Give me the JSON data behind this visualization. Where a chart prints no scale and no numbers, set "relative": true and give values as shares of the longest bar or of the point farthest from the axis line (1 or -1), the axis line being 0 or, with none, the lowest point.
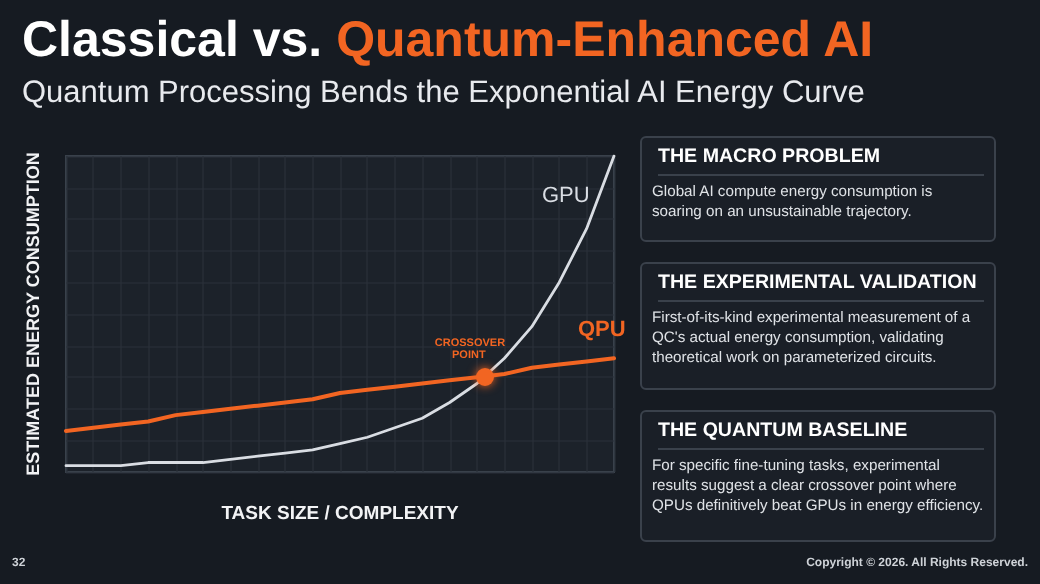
{
  "chart_data": [
    {
      "type": "line",
      "title": "Classical vs. Quantum-Enhanced AI",
      "subtitle": "Quantum Processing Bends the Exponential AI Energy Curve",
      "xlabel": "TASK SIZE / COMPLEXITY",
      "ylabel": "ESTIMATED ENERGY CONSUMPTION",
      "relative": true,
      "grid": true,
      "legend": false,
      "categories": [
        null,
        null,
        null,
        null,
        null,
        null,
        null,
        null,
        null,
        null,
        null,
        null,
        null,
        null,
        null,
        null,
        null,
        null,
        null,
        null,
        null
      ],
      "series": [
        {
          "name": "GPU",
          "color": "#d9dde3",
          "values": [
            0.02,
            0.02,
            0.02,
            0.03,
            0.03,
            0.03,
            0.04,
            0.05,
            0.06,
            0.07,
            0.09,
            0.11,
            0.14,
            0.17,
            0.22,
            0.28,
            0.36,
            0.46,
            0.6,
            0.77,
            1.0
          ]
        },
        {
          "name": "QPU",
          "color": "#f26522",
          "values": [
            0.13,
            0.14,
            0.15,
            0.16,
            0.18,
            0.19,
            0.2,
            0.21,
            0.22,
            0.23,
            0.25,
            0.26,
            0.27,
            0.28,
            0.29,
            0.3,
            0.31,
            0.33,
            0.34,
            0.35,
            0.36
          ]
        }
      ],
      "annotations": [
        "CROSSOVER POINT",
        "32",
        "Copyright © 2026. All Rights Reserved."
      ]
    },
    {
      "type": "other",
      "title": "THE MACRO PROBLEM",
      "annotations": [
        "Global AI compute energy consumption is soaring on an unsustainable trajectory."
      ]
    },
    {
      "type": "other",
      "title": "THE EXPERIMENTAL VALIDATION",
      "annotations": [
        "First-of-its-kind experimental measurement of a QC's actual energy consumption, validating theoretical work on parameterized circuits."
      ]
    },
    {
      "type": "other",
      "title": "THE QUANTUM BASELINE",
      "annotations": [
        "For specific fine-tuning tasks, experimental results suggest a clear crossover point where QPUs definitively beat GPUs in energy efficiency."
      ]
    }
  ]
}
